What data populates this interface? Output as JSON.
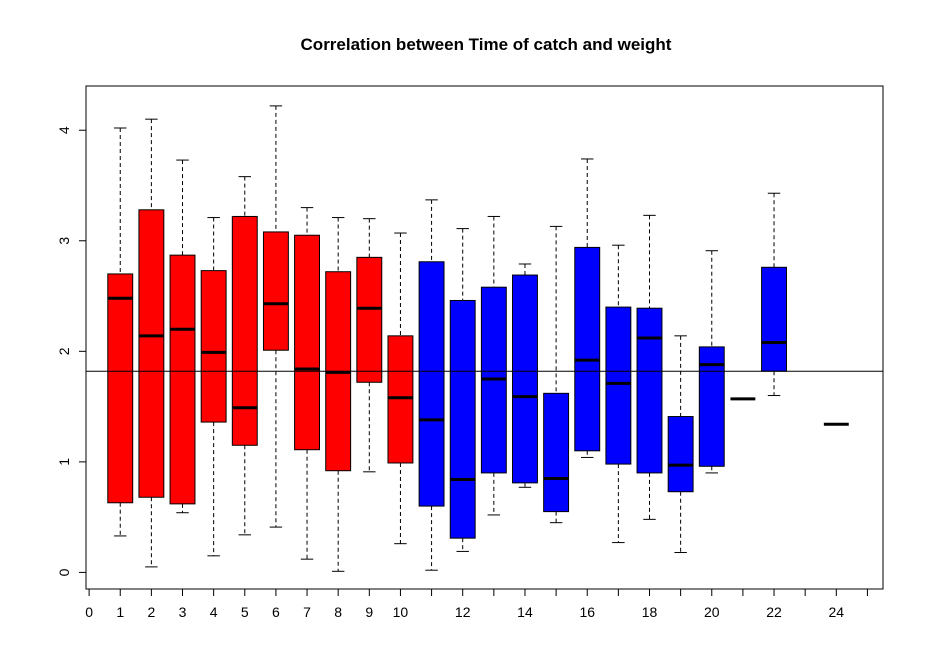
{
  "chart_data": {
    "type": "boxplot",
    "title": "Correlation between Time of catch and weight",
    "xlabel": "",
    "ylabel": "",
    "xlim": [
      -0.1,
      25.5
    ],
    "ylim": [
      -0.15,
      4.4
    ],
    "x_tick_labels": [
      "0",
      "1",
      "2",
      "3",
      "4",
      "5",
      "6",
      "7",
      "8",
      "9",
      "10",
      "12",
      "14",
      "16",
      "18",
      "20",
      "22",
      "24"
    ],
    "y_ticks": [
      0,
      1,
      2,
      3,
      4
    ],
    "reference_line_y": 1.82,
    "colors": {
      "group_a": "#ff0000",
      "group_b": "#0000ff",
      "stroke": "#000000"
    },
    "boxes": [
      {
        "x": 1,
        "min": 0.33,
        "q1": 0.63,
        "median": 2.48,
        "q3": 2.7,
        "max": 4.02,
        "color": "#ff0000"
      },
      {
        "x": 2,
        "min": 0.05,
        "q1": 0.68,
        "median": 2.14,
        "q3": 3.28,
        "max": 4.1,
        "color": "#ff0000"
      },
      {
        "x": 3,
        "min": 0.54,
        "q1": 0.62,
        "median": 2.2,
        "q3": 2.87,
        "max": 3.73,
        "color": "#ff0000"
      },
      {
        "x": 4,
        "min": 0.15,
        "q1": 1.36,
        "median": 1.99,
        "q3": 2.73,
        "max": 3.21,
        "color": "#ff0000"
      },
      {
        "x": 5,
        "min": 0.34,
        "q1": 1.15,
        "median": 1.49,
        "q3": 3.22,
        "max": 3.58,
        "color": "#ff0000"
      },
      {
        "x": 6,
        "min": 0.41,
        "q1": 2.01,
        "median": 2.43,
        "q3": 3.08,
        "max": 4.22,
        "color": "#ff0000"
      },
      {
        "x": 7,
        "min": 0.12,
        "q1": 1.11,
        "median": 1.84,
        "q3": 3.05,
        "max": 3.3,
        "color": "#ff0000"
      },
      {
        "x": 8,
        "min": 0.01,
        "q1": 0.92,
        "median": 1.81,
        "q3": 2.72,
        "max": 3.21,
        "color": "#ff0000"
      },
      {
        "x": 9,
        "min": 0.91,
        "q1": 1.72,
        "median": 2.39,
        "q3": 2.85,
        "max": 3.2,
        "color": "#ff0000"
      },
      {
        "x": 10,
        "min": 0.26,
        "q1": 0.99,
        "median": 1.58,
        "q3": 2.14,
        "max": 3.07,
        "color": "#ff0000"
      },
      {
        "x": 11,
        "min": 0.02,
        "q1": 0.6,
        "median": 1.38,
        "q3": 2.81,
        "max": 3.37,
        "color": "#0000ff"
      },
      {
        "x": 12,
        "min": 0.19,
        "q1": 0.31,
        "median": 0.84,
        "q3": 2.46,
        "max": 3.11,
        "color": "#0000ff"
      },
      {
        "x": 13,
        "min": 0.52,
        "q1": 0.9,
        "median": 1.75,
        "q3": 2.58,
        "max": 3.22,
        "color": "#0000ff"
      },
      {
        "x": 14,
        "min": 0.77,
        "q1": 0.81,
        "median": 1.59,
        "q3": 2.69,
        "max": 2.79,
        "color": "#0000ff"
      },
      {
        "x": 15,
        "min": 0.45,
        "q1": 0.55,
        "median": 0.85,
        "q3": 1.62,
        "max": 3.13,
        "color": "#0000ff"
      },
      {
        "x": 16,
        "min": 1.04,
        "q1": 1.1,
        "median": 1.92,
        "q3": 2.94,
        "max": 3.74,
        "color": "#0000ff"
      },
      {
        "x": 17,
        "min": 0.27,
        "q1": 0.98,
        "median": 1.71,
        "q3": 2.4,
        "max": 2.96,
        "color": "#0000ff"
      },
      {
        "x": 18,
        "min": 0.48,
        "q1": 0.9,
        "median": 2.12,
        "q3": 2.39,
        "max": 3.23,
        "color": "#0000ff"
      },
      {
        "x": 19,
        "min": 0.18,
        "q1": 0.73,
        "median": 0.97,
        "q3": 1.41,
        "max": 2.14,
        "color": "#0000ff"
      },
      {
        "x": 20,
        "min": 0.9,
        "q1": 0.96,
        "median": 1.88,
        "q3": 2.04,
        "max": 2.91,
        "color": "#0000ff"
      },
      {
        "x": 21,
        "min": 1.57,
        "q1": 1.57,
        "median": 1.57,
        "q3": 1.57,
        "max": 1.57,
        "color": "#0000ff"
      },
      {
        "x": 22,
        "min": 1.6,
        "q1": 1.82,
        "median": 2.08,
        "q3": 2.76,
        "max": 3.43,
        "color": "#0000ff"
      },
      {
        "x": 24,
        "min": 1.34,
        "q1": 1.34,
        "median": 1.34,
        "q3": 1.34,
        "max": 1.34,
        "color": "#0000ff"
      }
    ]
  }
}
